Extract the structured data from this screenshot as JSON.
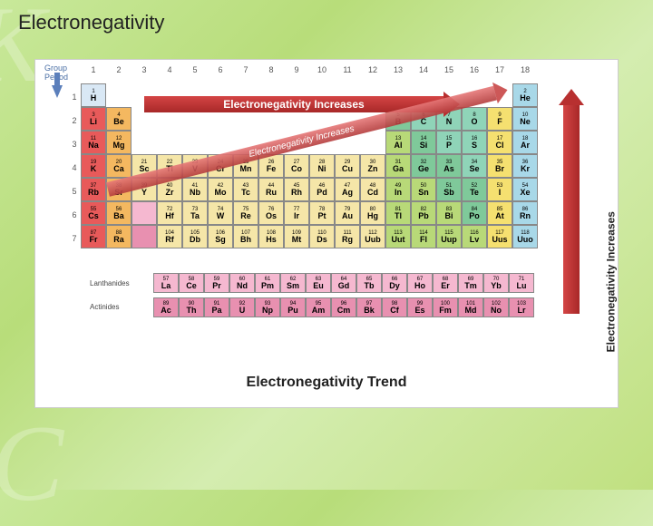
{
  "title": "Electronegativity",
  "chart": {
    "title": "Electronegativity Trend",
    "group_label": "Group",
    "period_label": "Period",
    "top_arrow_label": "Electronegativity Increases",
    "right_arrow_label": "Electronegativity Increases",
    "diag_arrow_label": "Electronegativity Increases",
    "lanthanide_label": "Lanthanides",
    "actinide_label": "Actinides",
    "groups": [
      "1",
      "2",
      "3",
      "4",
      "5",
      "6",
      "7",
      "8",
      "9",
      "10",
      "11",
      "12",
      "13",
      "14",
      "15",
      "16",
      "17",
      "18"
    ],
    "periods": [
      "1",
      "2",
      "3",
      "4",
      "5",
      "6",
      "7"
    ],
    "colors": {
      "alkali": "#e85a5a",
      "alkaline": "#f4b860",
      "transition": "#f5e6a8",
      "posttrans": "#b8d978",
      "metalloid": "#7fc99a",
      "nonmetal": "#8fd4b8",
      "halogen": "#f5e070",
      "noble": "#a8d8e8",
      "lanthanide": "#f5b8d0",
      "actinide": "#e890b0",
      "hydrogen": "#d9e8f5"
    },
    "elements": [
      {
        "n": 1,
        "s": "H",
        "g": 1,
        "p": 1,
        "c": "hydrogen"
      },
      {
        "n": 2,
        "s": "He",
        "g": 18,
        "p": 1,
        "c": "noble"
      },
      {
        "n": 3,
        "s": "Li",
        "g": 1,
        "p": 2,
        "c": "alkali"
      },
      {
        "n": 4,
        "s": "Be",
        "g": 2,
        "p": 2,
        "c": "alkaline"
      },
      {
        "n": 5,
        "s": "B",
        "g": 13,
        "p": 2,
        "c": "metalloid"
      },
      {
        "n": 6,
        "s": "C",
        "g": 14,
        "p": 2,
        "c": "nonmetal"
      },
      {
        "n": 7,
        "s": "N",
        "g": 15,
        "p": 2,
        "c": "nonmetal"
      },
      {
        "n": 8,
        "s": "O",
        "g": 16,
        "p": 2,
        "c": "nonmetal"
      },
      {
        "n": 9,
        "s": "F",
        "g": 17,
        "p": 2,
        "c": "halogen"
      },
      {
        "n": 10,
        "s": "Ne",
        "g": 18,
        "p": 2,
        "c": "noble"
      },
      {
        "n": 11,
        "s": "Na",
        "g": 1,
        "p": 3,
        "c": "alkali"
      },
      {
        "n": 12,
        "s": "Mg",
        "g": 2,
        "p": 3,
        "c": "alkaline"
      },
      {
        "n": 13,
        "s": "Al",
        "g": 13,
        "p": 3,
        "c": "posttrans"
      },
      {
        "n": 14,
        "s": "Si",
        "g": 14,
        "p": 3,
        "c": "metalloid"
      },
      {
        "n": 15,
        "s": "P",
        "g": 15,
        "p": 3,
        "c": "nonmetal"
      },
      {
        "n": 16,
        "s": "S",
        "g": 16,
        "p": 3,
        "c": "nonmetal"
      },
      {
        "n": 17,
        "s": "Cl",
        "g": 17,
        "p": 3,
        "c": "halogen"
      },
      {
        "n": 18,
        "s": "Ar",
        "g": 18,
        "p": 3,
        "c": "noble"
      },
      {
        "n": 19,
        "s": "K",
        "g": 1,
        "p": 4,
        "c": "alkali"
      },
      {
        "n": 20,
        "s": "Ca",
        "g": 2,
        "p": 4,
        "c": "alkaline"
      },
      {
        "n": 21,
        "s": "Sc",
        "g": 3,
        "p": 4,
        "c": "transition"
      },
      {
        "n": 22,
        "s": "Ti",
        "g": 4,
        "p": 4,
        "c": "transition"
      },
      {
        "n": 23,
        "s": "V",
        "g": 5,
        "p": 4,
        "c": "transition"
      },
      {
        "n": 24,
        "s": "Cr",
        "g": 6,
        "p": 4,
        "c": "transition"
      },
      {
        "n": 25,
        "s": "Mn",
        "g": 7,
        "p": 4,
        "c": "transition"
      },
      {
        "n": 26,
        "s": "Fe",
        "g": 8,
        "p": 4,
        "c": "transition"
      },
      {
        "n": 27,
        "s": "Co",
        "g": 9,
        "p": 4,
        "c": "transition"
      },
      {
        "n": 28,
        "s": "Ni",
        "g": 10,
        "p": 4,
        "c": "transition"
      },
      {
        "n": 29,
        "s": "Cu",
        "g": 11,
        "p": 4,
        "c": "transition"
      },
      {
        "n": 30,
        "s": "Zn",
        "g": 12,
        "p": 4,
        "c": "transition"
      },
      {
        "n": 31,
        "s": "Ga",
        "g": 13,
        "p": 4,
        "c": "posttrans"
      },
      {
        "n": 32,
        "s": "Ge",
        "g": 14,
        "p": 4,
        "c": "metalloid"
      },
      {
        "n": 33,
        "s": "As",
        "g": 15,
        "p": 4,
        "c": "metalloid"
      },
      {
        "n": 34,
        "s": "Se",
        "g": 16,
        "p": 4,
        "c": "nonmetal"
      },
      {
        "n": 35,
        "s": "Br",
        "g": 17,
        "p": 4,
        "c": "halogen"
      },
      {
        "n": 36,
        "s": "Kr",
        "g": 18,
        "p": 4,
        "c": "noble"
      },
      {
        "n": 37,
        "s": "Rb",
        "g": 1,
        "p": 5,
        "c": "alkali"
      },
      {
        "n": 38,
        "s": "Sr",
        "g": 2,
        "p": 5,
        "c": "alkaline"
      },
      {
        "n": 39,
        "s": "Y",
        "g": 3,
        "p": 5,
        "c": "transition"
      },
      {
        "n": 40,
        "s": "Zr",
        "g": 4,
        "p": 5,
        "c": "transition"
      },
      {
        "n": 41,
        "s": "Nb",
        "g": 5,
        "p": 5,
        "c": "transition"
      },
      {
        "n": 42,
        "s": "Mo",
        "g": 6,
        "p": 5,
        "c": "transition"
      },
      {
        "n": 43,
        "s": "Tc",
        "g": 7,
        "p": 5,
        "c": "transition"
      },
      {
        "n": 44,
        "s": "Ru",
        "g": 8,
        "p": 5,
        "c": "transition"
      },
      {
        "n": 45,
        "s": "Rh",
        "g": 9,
        "p": 5,
        "c": "transition"
      },
      {
        "n": 46,
        "s": "Pd",
        "g": 10,
        "p": 5,
        "c": "transition"
      },
      {
        "n": 47,
        "s": "Ag",
        "g": 11,
        "p": 5,
        "c": "transition"
      },
      {
        "n": 48,
        "s": "Cd",
        "g": 12,
        "p": 5,
        "c": "transition"
      },
      {
        "n": 49,
        "s": "In",
        "g": 13,
        "p": 5,
        "c": "posttrans"
      },
      {
        "n": 50,
        "s": "Sn",
        "g": 14,
        "p": 5,
        "c": "posttrans"
      },
      {
        "n": 51,
        "s": "Sb",
        "g": 15,
        "p": 5,
        "c": "metalloid"
      },
      {
        "n": 52,
        "s": "Te",
        "g": 16,
        "p": 5,
        "c": "metalloid"
      },
      {
        "n": 53,
        "s": "I",
        "g": 17,
        "p": 5,
        "c": "halogen"
      },
      {
        "n": 54,
        "s": "Xe",
        "g": 18,
        "p": 5,
        "c": "noble"
      },
      {
        "n": 55,
        "s": "Cs",
        "g": 1,
        "p": 6,
        "c": "alkali"
      },
      {
        "n": 56,
        "s": "Ba",
        "g": 2,
        "p": 6,
        "c": "alkaline"
      },
      {
        "n": 72,
        "s": "Hf",
        "g": 4,
        "p": 6,
        "c": "transition"
      },
      {
        "n": 73,
        "s": "Ta",
        "g": 5,
        "p": 6,
        "c": "transition"
      },
      {
        "n": 74,
        "s": "W",
        "g": 6,
        "p": 6,
        "c": "transition"
      },
      {
        "n": 75,
        "s": "Re",
        "g": 7,
        "p": 6,
        "c": "transition"
      },
      {
        "n": 76,
        "s": "Os",
        "g": 8,
        "p": 6,
        "c": "transition"
      },
      {
        "n": 77,
        "s": "Ir",
        "g": 9,
        "p": 6,
        "c": "transition"
      },
      {
        "n": 78,
        "s": "Pt",
        "g": 10,
        "p": 6,
        "c": "transition"
      },
      {
        "n": 79,
        "s": "Au",
        "g": 11,
        "p": 6,
        "c": "transition"
      },
      {
        "n": 80,
        "s": "Hg",
        "g": 12,
        "p": 6,
        "c": "transition"
      },
      {
        "n": 81,
        "s": "Tl",
        "g": 13,
        "p": 6,
        "c": "posttrans"
      },
      {
        "n": 82,
        "s": "Pb",
        "g": 14,
        "p": 6,
        "c": "posttrans"
      },
      {
        "n": 83,
        "s": "Bi",
        "g": 15,
        "p": 6,
        "c": "posttrans"
      },
      {
        "n": 84,
        "s": "Po",
        "g": 16,
        "p": 6,
        "c": "metalloid"
      },
      {
        "n": 85,
        "s": "At",
        "g": 17,
        "p": 6,
        "c": "halogen"
      },
      {
        "n": 86,
        "s": "Rn",
        "g": 18,
        "p": 6,
        "c": "noble"
      },
      {
        "n": 87,
        "s": "Fr",
        "g": 1,
        "p": 7,
        "c": "alkali"
      },
      {
        "n": 88,
        "s": "Ra",
        "g": 2,
        "p": 7,
        "c": "alkaline"
      },
      {
        "n": 104,
        "s": "Rf",
        "g": 4,
        "p": 7,
        "c": "transition"
      },
      {
        "n": 105,
        "s": "Db",
        "g": 5,
        "p": 7,
        "c": "transition"
      },
      {
        "n": 106,
        "s": "Sg",
        "g": 6,
        "p": 7,
        "c": "transition"
      },
      {
        "n": 107,
        "s": "Bh",
        "g": 7,
        "p": 7,
        "c": "transition"
      },
      {
        "n": 108,
        "s": "Hs",
        "g": 8,
        "p": 7,
        "c": "transition"
      },
      {
        "n": 109,
        "s": "Mt",
        "g": 9,
        "p": 7,
        "c": "transition"
      },
      {
        "n": 110,
        "s": "Ds",
        "g": 10,
        "p": 7,
        "c": "transition"
      },
      {
        "n": 111,
        "s": "Rg",
        "g": 11,
        "p": 7,
        "c": "transition"
      },
      {
        "n": 112,
        "s": "Uub",
        "g": 12,
        "p": 7,
        "c": "transition"
      },
      {
        "n": 113,
        "s": "Uut",
        "g": 13,
        "p": 7,
        "c": "posttrans"
      },
      {
        "n": 114,
        "s": "Fl",
        "g": 14,
        "p": 7,
        "c": "posttrans"
      },
      {
        "n": 115,
        "s": "Uup",
        "g": 15,
        "p": 7,
        "c": "posttrans"
      },
      {
        "n": 116,
        "s": "Lv",
        "g": 16,
        "p": 7,
        "c": "posttrans"
      },
      {
        "n": 117,
        "s": "Uus",
        "g": 17,
        "p": 7,
        "c": "halogen"
      },
      {
        "n": 118,
        "s": "Uuo",
        "g": 18,
        "p": 7,
        "c": "noble"
      }
    ],
    "lanthanides": [
      {
        "n": 57,
        "s": "La"
      },
      {
        "n": 58,
        "s": "Ce"
      },
      {
        "n": 59,
        "s": "Pr"
      },
      {
        "n": 60,
        "s": "Nd"
      },
      {
        "n": 61,
        "s": "Pm"
      },
      {
        "n": 62,
        "s": "Sm"
      },
      {
        "n": 63,
        "s": "Eu"
      },
      {
        "n": 64,
        "s": "Gd"
      },
      {
        "n": 65,
        "s": "Tb"
      },
      {
        "n": 66,
        "s": "Dy"
      },
      {
        "n": 67,
        "s": "Ho"
      },
      {
        "n": 68,
        "s": "Er"
      },
      {
        "n": 69,
        "s": "Tm"
      },
      {
        "n": 70,
        "s": "Yb"
      },
      {
        "n": 71,
        "s": "Lu"
      }
    ],
    "actinides": [
      {
        "n": 89,
        "s": "Ac"
      },
      {
        "n": 90,
        "s": "Th"
      },
      {
        "n": 91,
        "s": "Pa"
      },
      {
        "n": 92,
        "s": "U"
      },
      {
        "n": 93,
        "s": "Np"
      },
      {
        "n": 94,
        "s": "Pu"
      },
      {
        "n": 95,
        "s": "Am"
      },
      {
        "n": 96,
        "s": "Cm"
      },
      {
        "n": 97,
        "s": "Bk"
      },
      {
        "n": 98,
        "s": "Cf"
      },
      {
        "n": 99,
        "s": "Es"
      },
      {
        "n": 100,
        "s": "Fm"
      },
      {
        "n": 101,
        "s": "Md"
      },
      {
        "n": 102,
        "s": "No"
      },
      {
        "n": 103,
        "s": "Lr"
      }
    ]
  }
}
